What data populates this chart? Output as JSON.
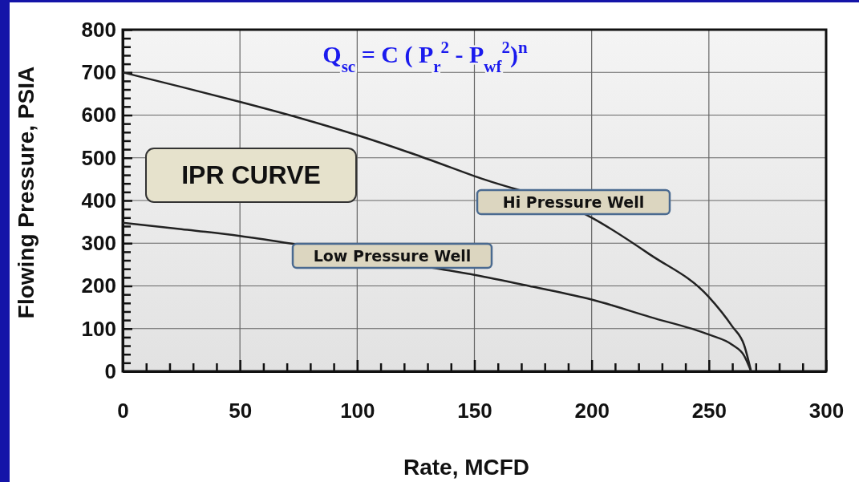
{
  "chart_data": {
    "type": "line",
    "xlabel": "Rate, MCFD",
    "ylabel": "Flowing Pressure, PSIA",
    "annotations": [
      "Q$_{sc}$ = C ( P$_{r}$$^{2}$ - P$_{wf}$$^{2}$)$^{n}$",
      "IPR CURVE"
    ],
    "series": [
      {
        "name": "Hi Pressure Well",
        "color": "#222222",
        "x": [
          0,
          25,
          50,
          75,
          100,
          125,
          150,
          200,
          225,
          250,
          260,
          265,
          268
        ],
        "values": [
          700,
          666,
          631,
          594,
          553,
          507,
          457,
          360,
          273,
          174,
          105,
          62,
          0
        ]
      },
      {
        "name": "Low Pressure Well",
        "color": "#222222",
        "x": [
          0,
          25,
          50,
          72,
          136,
          150,
          175,
          200,
          225,
          250,
          260,
          265,
          268
        ],
        "values": [
          348,
          333,
          317,
          299,
          239,
          226,
          198,
          168,
          127,
          86,
          62,
          37,
          0
        ]
      }
    ],
    "xlim": [
      0,
      300
    ],
    "ylim": [
      0,
      800
    ],
    "xticks": [
      0,
      {
        "value": 10,
        "label": null
      },
      {
        "value": 20,
        "label": null
      },
      {
        "value": 30,
        "label": null
      },
      {
        "value": 40,
        "label": null
      },
      50,
      {
        "value": 60,
        "label": null
      },
      {
        "value": 70,
        "label": null
      },
      {
        "value": 80,
        "label": null
      },
      {
        "value": 90,
        "label": null
      },
      100,
      {
        "value": 110,
        "label": null
      },
      {
        "value": 120,
        "label": null
      },
      {
        "value": 130,
        "label": null
      },
      {
        "value": 140,
        "label": null
      },
      150,
      {
        "value": 160,
        "label": null
      },
      {
        "value": 170,
        "label": null
      },
      {
        "value": 180,
        "label": null
      },
      {
        "value": 190,
        "label": null
      },
      200,
      {
        "value": 210,
        "label": null
      },
      {
        "value": 220,
        "label": null
      },
      {
        "value": 230,
        "label": null
      },
      {
        "value": 240,
        "label": null
      },
      250,
      {
        "value": 260,
        "label": null
      },
      {
        "value": 270,
        "label": null
      },
      {
        "value": 280,
        "label": null
      },
      {
        "value": 290,
        "label": null
      },
      300
    ],
    "yticks": [
      0,
      {
        "value": 20,
        "label": null
      },
      {
        "value": 40,
        "label": null
      },
      {
        "value": 60,
        "label": null
      },
      {
        "value": 80,
        "label": null
      },
      100,
      {
        "value": 120,
        "label": null
      },
      {
        "value": 140,
        "label": null
      },
      {
        "value": 160,
        "label": null
      },
      {
        "value": 180,
        "label": null
      },
      200,
      {
        "value": 220,
        "label": null
      },
      {
        "value": 240,
        "label": null
      },
      {
        "value": 260,
        "label": null
      },
      {
        "value": 280,
        "label": null
      },
      300,
      {
        "value": 320,
        "label": null
      },
      {
        "value": 340,
        "label": null
      },
      {
        "value": 360,
        "label": null
      },
      {
        "value": 380,
        "label": null
      },
      400,
      {
        "value": 420,
        "label": null
      },
      {
        "value": 440,
        "label": null
      },
      {
        "value": 460,
        "label": null
      },
      {
        "value": 480,
        "label": null
      },
      500,
      {
        "value": 520,
        "label": null
      },
      {
        "value": 540,
        "label": null
      },
      {
        "value": 560,
        "label": null
      },
      {
        "value": 580,
        "label": null
      },
      600,
      {
        "value": 620,
        "label": null
      },
      {
        "value": 640,
        "label": null
      },
      {
        "value": 660,
        "label": null
      },
      {
        "value": 680,
        "label": null
      },
      700,
      {
        "value": 720,
        "label": null
      },
      {
        "value": 740,
        "label": null
      },
      {
        "value": 760,
        "label": null
      },
      {
        "value": 780,
        "label": null
      },
      800
    ],
    "grid": true,
    "line_style": "solid",
    "marker": "none"
  }
}
